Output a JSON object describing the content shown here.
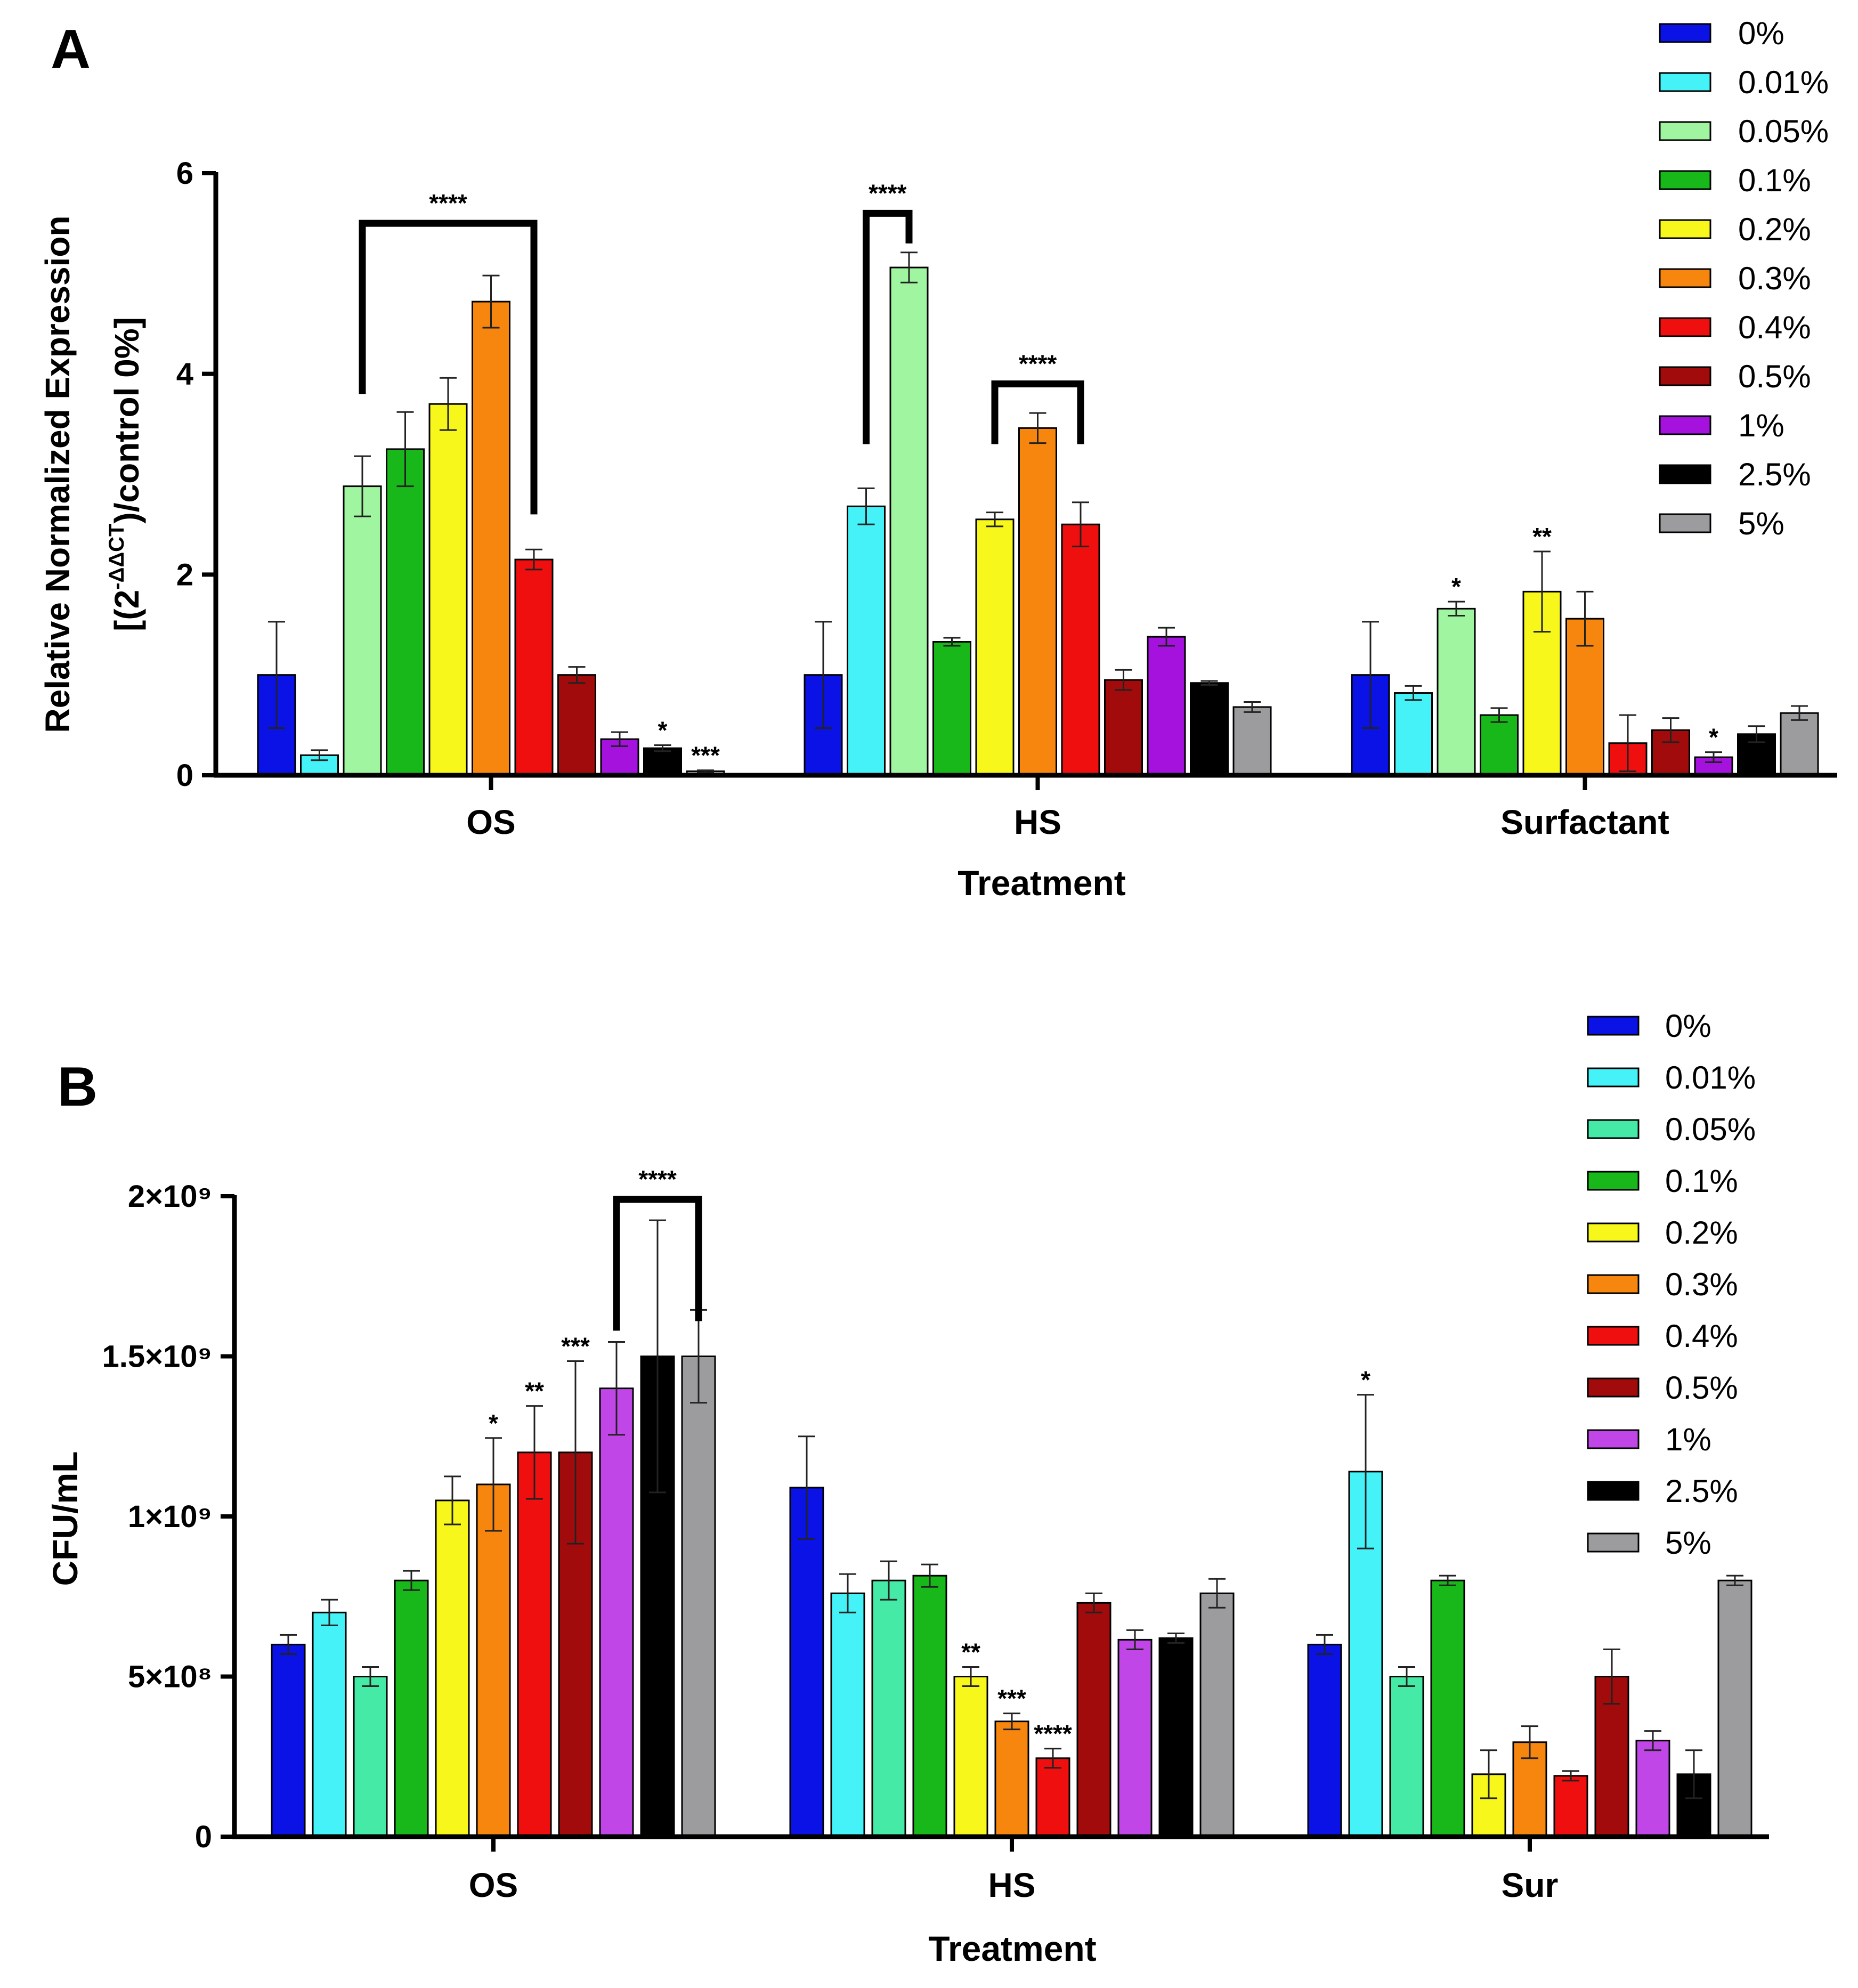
{
  "chart_data": [
    {
      "panel_label": "A",
      "type": "bar",
      "categories": [
        "OS",
        "HS",
        "Surfactant"
      ],
      "xlabel": "Treatment",
      "ylabel_line1": "Relative Normalized Expression",
      "ylabel_line2_prefix": "[(2",
      "ylabel_line2_sup": "-ΔΔCT",
      "ylabel_line2_suffix": ")/control 0%]",
      "ylim": [
        0,
        6
      ],
      "yticks": [
        0,
        2,
        4,
        6
      ],
      "ytick_labels": [
        "0",
        "2",
        "4",
        "6"
      ],
      "legend_position": "top-right",
      "series": [
        {
          "name": "0%",
          "color": "#0a12e6",
          "values": [
            1.0,
            1.0,
            1.0
          ],
          "errors": [
            0.53,
            0.53,
            0.53
          ]
        },
        {
          "name": "0.01%",
          "color": "#44f2f7",
          "values": [
            0.2,
            2.68,
            0.82
          ],
          "errors": [
            0.05,
            0.18,
            0.07
          ]
        },
        {
          "name": "0.05%",
          "color": "#a0f5a0",
          "values": [
            2.88,
            5.06,
            1.66
          ],
          "errors": [
            0.3,
            0.15,
            0.07
          ]
        },
        {
          "name": "0.1%",
          "color": "#19b81a",
          "values": [
            3.25,
            1.33,
            0.6
          ],
          "errors": [
            0.37,
            0.04,
            0.07
          ]
        },
        {
          "name": "0.2%",
          "color": "#f7f71c",
          "values": [
            3.7,
            2.55,
            1.83
          ],
          "errors": [
            0.26,
            0.07,
            0.4
          ]
        },
        {
          "name": "0.3%",
          "color": "#f7860f",
          "values": [
            4.72,
            3.46,
            1.56
          ],
          "errors": [
            0.26,
            0.15,
            0.27
          ]
        },
        {
          "name": "0.4%",
          "color": "#ef0f0f",
          "values": [
            2.15,
            2.5,
            0.32
          ],
          "errors": [
            0.1,
            0.22,
            0.28
          ]
        },
        {
          "name": "0.5%",
          "color": "#a20b0b",
          "values": [
            1.0,
            0.95,
            0.45
          ],
          "errors": [
            0.08,
            0.1,
            0.12
          ]
        },
        {
          "name": "1%",
          "color": "#a512de",
          "values": [
            0.36,
            1.38,
            0.18
          ],
          "errors": [
            0.07,
            0.09,
            0.05
          ]
        },
        {
          "name": "2.5%",
          "color": "#000000",
          "values": [
            0.27,
            0.92,
            0.41
          ],
          "errors": [
            0.03,
            0.02,
            0.08
          ]
        },
        {
          "name": "5%",
          "color": "#9c9c9f",
          "values": [
            0.04,
            0.68,
            0.62
          ],
          "errors": [
            0.01,
            0.05,
            0.07
          ]
        }
      ],
      "significance": [
        {
          "category": 0,
          "series": 9,
          "label": "*"
        },
        {
          "category": 0,
          "series": 10,
          "label": "***"
        },
        {
          "category": 2,
          "series": 2,
          "label": "*"
        },
        {
          "category": 2,
          "series": 4,
          "label": "**"
        },
        {
          "category": 2,
          "series": 8,
          "label": "*"
        }
      ],
      "brackets": [
        {
          "category": 0,
          "from_series": 2,
          "to_series": 6,
          "level": 5.5,
          "left_drop": 3.8,
          "right_drop": 2.6,
          "label": "****"
        },
        {
          "category": 1,
          "from_series": 1,
          "to_series": 2,
          "level": 5.6,
          "left_drop": 3.3,
          "right_drop": 5.3,
          "label": "****"
        },
        {
          "category": 1,
          "from_series": 4,
          "to_series": 6,
          "level": 3.9,
          "left_drop": 3.3,
          "right_drop": 3.3,
          "label": "****"
        }
      ]
    },
    {
      "panel_label": "B",
      "type": "bar",
      "categories": [
        "OS",
        "HS",
        "Sur"
      ],
      "xlabel": "Treatment",
      "ylabel": "CFU/mL",
      "ylim": [
        0,
        2000000000
      ],
      "yticks": [
        0,
        500000000,
        1000000000,
        1500000000,
        2000000000
      ],
      "ytick_labels": [
        "0",
        "5×10⁸",
        "1×10⁹",
        "1.5×10⁹",
        "2×10⁹"
      ],
      "legend_position": "top-right",
      "series": [
        {
          "name": "0%",
          "color": "#0a12e6",
          "values": [
            600000000,
            1090000000,
            600000000
          ],
          "errors": [
            30000000,
            160000000,
            30000000
          ]
        },
        {
          "name": "0.01%",
          "color": "#44f2f7",
          "values": [
            700000000,
            760000000,
            1140000000
          ],
          "errors": [
            40000000,
            60000000,
            240000000
          ]
        },
        {
          "name": "0.05%",
          "color": "#45eaa6",
          "values": [
            500000000,
            800000000,
            500000000
          ],
          "errors": [
            30000000,
            60000000,
            30000000
          ]
        },
        {
          "name": "0.1%",
          "color": "#19b81a",
          "values": [
            800000000,
            815000000,
            800000000
          ],
          "errors": [
            30000000,
            35000000,
            15000000
          ]
        },
        {
          "name": "0.2%",
          "color": "#f7f71c",
          "values": [
            1050000000,
            500000000,
            195000000
          ],
          "errors": [
            75000000,
            30000000,
            75000000
          ]
        },
        {
          "name": "0.3%",
          "color": "#f7860f",
          "values": [
            1100000000,
            360000000,
            295000000
          ],
          "errors": [
            145000000,
            25000000,
            50000000
          ]
        },
        {
          "name": "0.4%",
          "color": "#ef0f0f",
          "values": [
            1200000000,
            245000000,
            190000000
          ],
          "errors": [
            145000000,
            30000000,
            15000000
          ]
        },
        {
          "name": "0.5%",
          "color": "#a20b0b",
          "values": [
            1200000000,
            730000000,
            500000000
          ],
          "errors": [
            285000000,
            30000000,
            85000000
          ]
        },
        {
          "name": "1%",
          "color": "#c046e8",
          "values": [
            1400000000,
            615000000,
            300000000
          ],
          "errors": [
            145000000,
            30000000,
            30000000
          ]
        },
        {
          "name": "2.5%",
          "color": "#000000",
          "values": [
            1500000000,
            620000000,
            195000000
          ],
          "errors": [
            425000000,
            15000000,
            75000000
          ]
        },
        {
          "name": "5%",
          "color": "#9c9c9f",
          "values": [
            1500000000,
            760000000,
            800000000
          ],
          "errors": [
            145000000,
            45000000,
            15000000
          ]
        }
      ],
      "significance": [
        {
          "category": 0,
          "series": 5,
          "label": "*"
        },
        {
          "category": 0,
          "series": 6,
          "label": "**"
        },
        {
          "category": 0,
          "series": 7,
          "label": "***"
        },
        {
          "category": 1,
          "series": 4,
          "label": "**"
        },
        {
          "category": 1,
          "series": 5,
          "label": "***"
        },
        {
          "category": 1,
          "series": 6,
          "label": "****"
        },
        {
          "category": 2,
          "series": 1,
          "label": "*"
        }
      ],
      "brackets": [
        {
          "category": 0,
          "from_series": 8,
          "to_series": 10,
          "level": 1990000000,
          "left_drop": 1580000000,
          "right_drop": 1610000000,
          "label": "****"
        }
      ]
    }
  ]
}
